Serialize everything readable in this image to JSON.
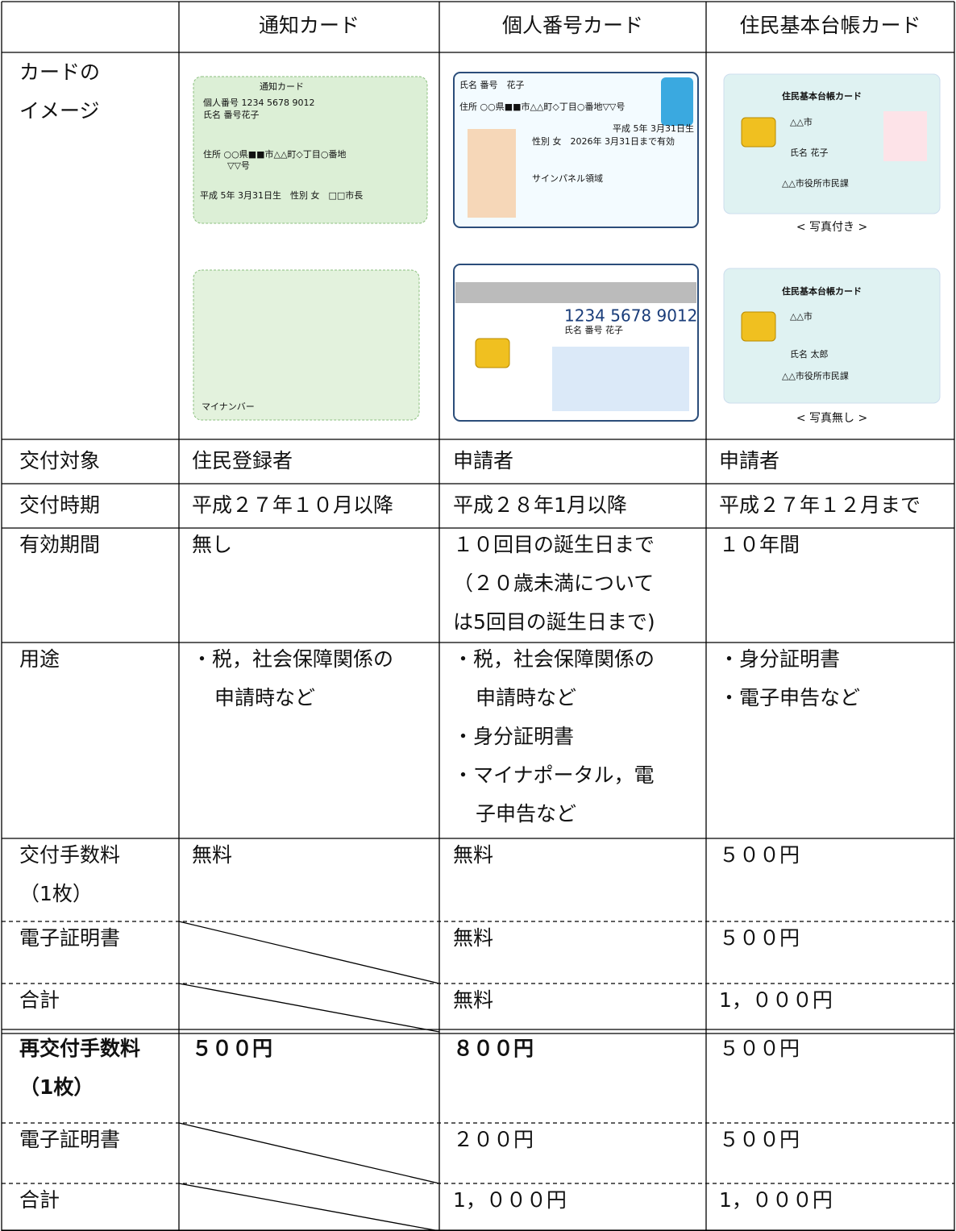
{
  "table": {
    "header": [
      "通知カード",
      "個人番号カード",
      "住民基本台帳カード"
    ],
    "image_row": {
      "label": [
        "カードの",
        "イメージ"
      ],
      "cards": [
        {
          "front": [
            "通知カード",
            "個人番号 1234 5678 9012",
            "氏名 番号花子",
            "住所 ○○県■■市△△町◇丁目○番地",
            "▽▽号",
            "平成 5年 3月31日生　性別 女　□□市長"
          ],
          "back": [
            "マイナンバー"
          ]
        },
        {
          "front": [
            "氏名 番号　花子",
            "住所 ○○県■■市△△町◇丁目○番地▽▽号",
            "平成 5年 3月31日生",
            "性別 女　2026年 3月31日まで有効",
            "サインパネル領域"
          ],
          "back": [
            "1234 5678 9012",
            "氏名 番号 花子"
          ]
        },
        {
          "front": [
            "住民基本台帳カード",
            "△△市",
            "氏名 花子",
            "△△市役所市民課"
          ],
          "back": [
            "住民基本台帳カード",
            "△△市",
            "氏名 太郎",
            "△△市役所市民課"
          ]
        }
      ],
      "captions": [
        "< 写真付き >",
        "< 写真無し >"
      ]
    },
    "rows": [
      {
        "label": [
          "交付対象"
        ],
        "cells": [
          [
            "住民登録者"
          ],
          [
            "申請者"
          ],
          [
            "申請者"
          ]
        ]
      },
      {
        "label": [
          "交付時期"
        ],
        "cells": [
          [
            "平成２７年１０月以降"
          ],
          [
            "平成２８年1月以降"
          ],
          [
            "平成２７年１２月まで"
          ]
        ]
      },
      {
        "label": [
          "有効期間"
        ],
        "cells": [
          [
            "無し"
          ],
          [
            "１０回目の誕生日まで",
            "（２０歳未満について",
            "は5回目の誕生日まで)"
          ],
          [
            "１０年間"
          ]
        ]
      },
      {
        "label": [
          "用途"
        ],
        "cells": [
          [
            "・税，社会保障関係の",
            "申請時など"
          ],
          [
            "・税，社会保障関係の",
            "申請時など",
            "・身分証明書",
            "・マイナポータル，電",
            "子申告など"
          ],
          [
            "・身分証明書",
            "・電子申告など"
          ]
        ]
      },
      {
        "label": [
          "交付手数料",
          "（1枚）"
        ],
        "cells": [
          [
            "無料"
          ],
          [
            "無料"
          ],
          [
            "５００円"
          ]
        ]
      },
      {
        "label": [
          "電子証明書"
        ],
        "cells": [
          [],
          [
            "無料"
          ],
          [
            "５００円"
          ]
        ]
      },
      {
        "label": [
          "合計"
        ],
        "cells": [
          [],
          [
            "無料"
          ],
          [
            "1，０００円"
          ]
        ]
      },
      {
        "label": [
          "再交付手数料",
          "（1枚）"
        ],
        "cells": [
          [
            "５００円"
          ],
          [
            "８００円"
          ],
          [
            "５００円"
          ]
        ]
      },
      {
        "label": [
          "電子証明書"
        ],
        "cells": [
          [],
          [
            "２００円"
          ],
          [
            "５００円"
          ]
        ]
      },
      {
        "label": [
          "合計"
        ],
        "cells": [
          [],
          [
            "1，０００円"
          ],
          [
            "1，０００円"
          ]
        ]
      }
    ]
  }
}
